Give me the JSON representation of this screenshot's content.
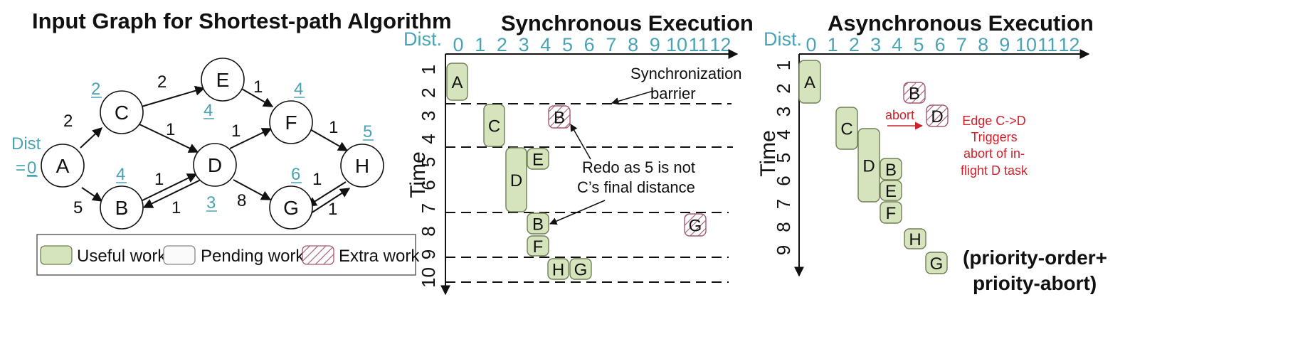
{
  "graph_panel": {
    "title": "Input Graph for Shortest-path Algorithm",
    "source_label_1": "Dist",
    "source_label_2": "=",
    "source_value": "0",
    "nodes": [
      {
        "id": "A",
        "dist": ""
      },
      {
        "id": "B",
        "dist": "4"
      },
      {
        "id": "C",
        "dist": "2"
      },
      {
        "id": "D",
        "dist": "3"
      },
      {
        "id": "E",
        "dist": "4"
      },
      {
        "id": "F",
        "dist": "4"
      },
      {
        "id": "G",
        "dist": "6"
      },
      {
        "id": "H",
        "dist": "5"
      }
    ],
    "edges": [
      {
        "from": "A",
        "to": "C",
        "weight": "2"
      },
      {
        "from": "A",
        "to": "B",
        "weight": "5"
      },
      {
        "from": "C",
        "to": "E",
        "weight": "2"
      },
      {
        "from": "C",
        "to": "D",
        "weight": "1"
      },
      {
        "from": "B",
        "to": "D",
        "weight": "1"
      },
      {
        "from": "D",
        "to": "B",
        "weight": "1"
      },
      {
        "from": "E",
        "to": "F",
        "weight": "1"
      },
      {
        "from": "D",
        "to": "F",
        "weight": "1"
      },
      {
        "from": "D",
        "to": "G",
        "weight": "8"
      },
      {
        "from": "F",
        "to": "H",
        "weight": "1"
      },
      {
        "from": "G",
        "to": "H",
        "weight": "1"
      },
      {
        "from": "H",
        "to": "G",
        "weight": "1"
      }
    ],
    "legend": {
      "useful": "Useful work",
      "pending": "Pending work",
      "extra": "Extra work"
    }
  },
  "colors": {
    "useful_fill": "#d6e4bd",
    "useful_stroke": "#6e7f55",
    "extra_stroke": "#a35a70",
    "teal": "#4aa3b5",
    "red": "#d0202a"
  },
  "sync_panel": {
    "title": "Synchronous Execution",
    "x_label": "Dist.",
    "y_label": "Time",
    "x_ticks": [
      "0",
      "1",
      "2",
      "3",
      "4",
      "5",
      "6",
      "7",
      "8",
      "9",
      "10",
      "11",
      "12"
    ],
    "y_ticks": [
      "1",
      "2",
      "3",
      "4",
      "5",
      "6",
      "7",
      "8",
      "9",
      "10"
    ],
    "tasks": [
      {
        "label": "A",
        "dist": 0,
        "t_start": 1,
        "t_end": 2,
        "kind": "useful"
      },
      {
        "label": "C",
        "dist": 2,
        "t_start": 3,
        "t_end": 4,
        "kind": "useful"
      },
      {
        "label": "B",
        "dist": 5,
        "t_start": 3,
        "t_end": 3,
        "kind": "extra"
      },
      {
        "label": "D",
        "dist": 3,
        "t_start": 5,
        "t_end": 7,
        "kind": "useful"
      },
      {
        "label": "E",
        "dist": 4,
        "t_start": 5,
        "t_end": 5,
        "kind": "useful"
      },
      {
        "label": "B",
        "dist": 4,
        "t_start": 8,
        "t_end": 8,
        "kind": "useful"
      },
      {
        "label": "G",
        "dist": 11,
        "t_start": 8,
        "t_end": 8,
        "kind": "extra"
      },
      {
        "label": "F",
        "dist": 4,
        "t_start": 9,
        "t_end": 9,
        "kind": "useful"
      },
      {
        "label": "H",
        "dist": 5,
        "t_start": 10,
        "t_end": 10,
        "kind": "useful"
      },
      {
        "label": "G",
        "dist": 6,
        "t_start": 10,
        "t_end": 10,
        "kind": "useful"
      }
    ],
    "barrier_label_1": "Synchronization",
    "barrier_label_2": "barrier",
    "redo_label_1": "Redo as 5 is not",
    "redo_label_2": "C’s final distance"
  },
  "async_panel": {
    "title": "Asynchronous Execution",
    "x_label": "Dist.",
    "y_label": "Time",
    "x_ticks": [
      "0",
      "1",
      "2",
      "3",
      "4",
      "5",
      "6",
      "7",
      "8",
      "9",
      "10",
      "11",
      "12"
    ],
    "y_ticks": [
      "1",
      "2",
      "3",
      "4",
      "5",
      "6",
      "7",
      "8",
      "9"
    ],
    "tasks": [
      {
        "label": "A",
        "kind": "useful"
      },
      {
        "label": "B",
        "kind": "extra"
      },
      {
        "label": "D",
        "kind": "extra"
      },
      {
        "label": "C",
        "kind": "useful"
      },
      {
        "label": "D",
        "kind": "useful"
      },
      {
        "label": "B",
        "kind": "useful"
      },
      {
        "label": "E",
        "kind": "useful"
      },
      {
        "label": "F",
        "kind": "useful"
      },
      {
        "label": "H",
        "kind": "useful"
      },
      {
        "label": "G",
        "kind": "useful"
      }
    ],
    "abort_label": "abort",
    "edge_note": [
      "Edge C->D",
      "Triggers",
      "abort of in-",
      "flight D task"
    ],
    "bottom_note_1": "(priority-order+",
    "bottom_note_2": "prioity-abort)"
  }
}
